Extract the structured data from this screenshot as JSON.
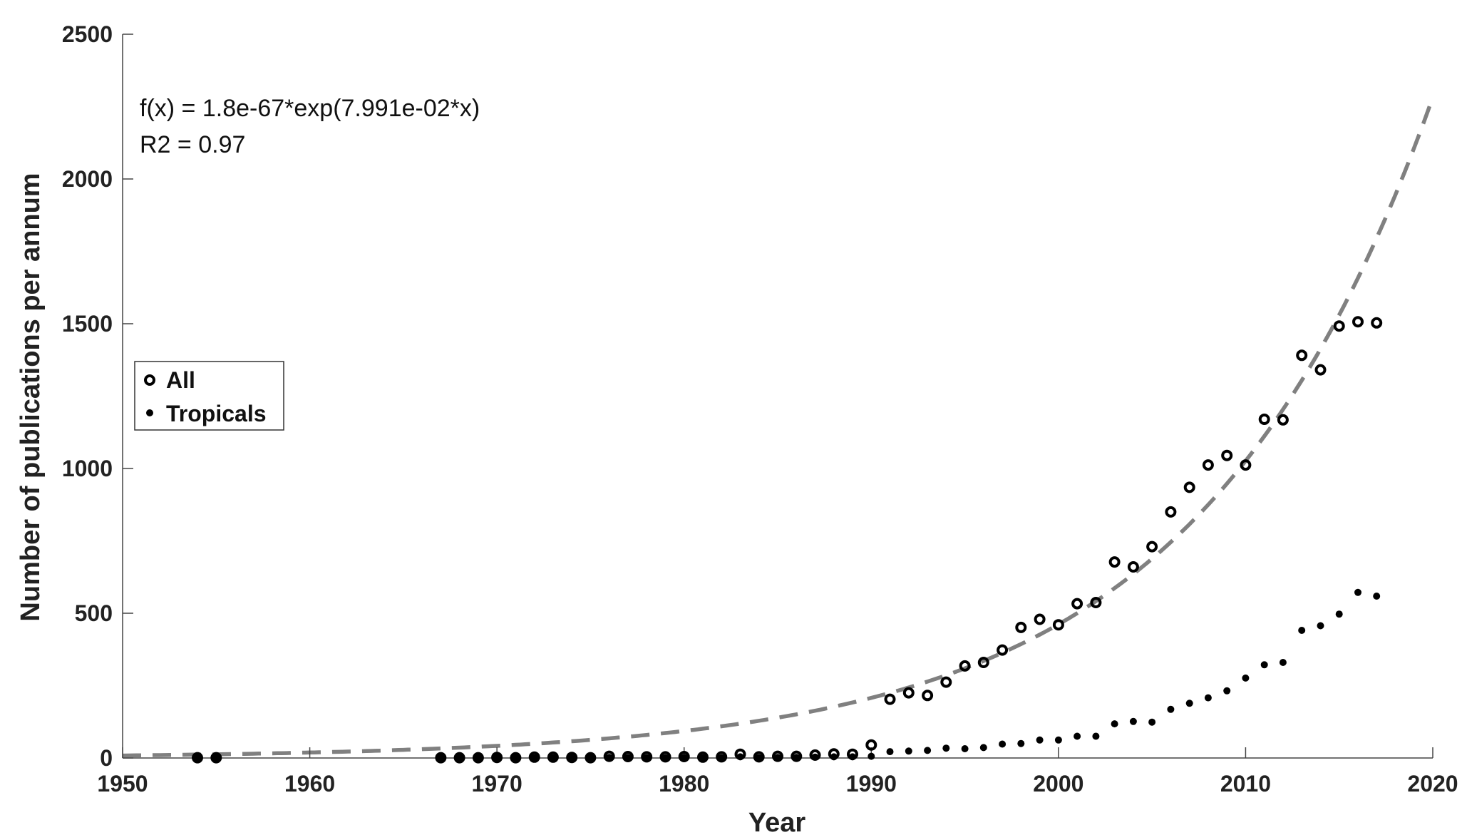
{
  "chart_data": {
    "type": "scatter",
    "xlabel": "Year",
    "ylabel": "Number of publications per annum",
    "xlim": [
      1950,
      2020
    ],
    "ylim": [
      0,
      2500
    ],
    "x_ticks": [
      "1950",
      "1960",
      "1970",
      "1980",
      "1990",
      "2000",
      "2010",
      "2020"
    ],
    "y_ticks": [
      "0",
      "500",
      "1000",
      "1500",
      "2000",
      "2500"
    ],
    "grid": false,
    "legend_position": "left",
    "annotations": [
      "f(x) = 1.8e-67*exp(7.991e-02*x)",
      "R2 = 0.97"
    ],
    "fit": {
      "a": 1.8e-67,
      "b": 0.07991,
      "color": "#808080",
      "style": "dashed"
    },
    "series": [
      {
        "name": "All",
        "marker": "open-circle",
        "color": "#000000",
        "points": [
          [
            1954,
            1
          ],
          [
            1955,
            1
          ],
          [
            1967,
            1
          ],
          [
            1968,
            1
          ],
          [
            1969,
            1
          ],
          [
            1970,
            2
          ],
          [
            1971,
            1
          ],
          [
            1972,
            3
          ],
          [
            1973,
            3
          ],
          [
            1974,
            2
          ],
          [
            1975,
            1
          ],
          [
            1976,
            6
          ],
          [
            1977,
            5
          ],
          [
            1978,
            4
          ],
          [
            1979,
            4
          ],
          [
            1980,
            5
          ],
          [
            1981,
            3
          ],
          [
            1982,
            4
          ],
          [
            1983,
            13
          ],
          [
            1984,
            4
          ],
          [
            1985,
            6
          ],
          [
            1986,
            6
          ],
          [
            1987,
            10
          ],
          [
            1988,
            14
          ],
          [
            1989,
            13
          ],
          [
            1990,
            45
          ],
          [
            1991,
            203
          ],
          [
            1992,
            225
          ],
          [
            1993,
            216
          ],
          [
            1994,
            262
          ],
          [
            1995,
            318
          ],
          [
            1996,
            330
          ],
          [
            1997,
            373
          ],
          [
            1998,
            451
          ],
          [
            1999,
            479
          ],
          [
            2000,
            460
          ],
          [
            2001,
            533
          ],
          [
            2002,
            537
          ],
          [
            2003,
            677
          ],
          [
            2004,
            660
          ],
          [
            2005,
            730
          ],
          [
            2006,
            850
          ],
          [
            2007,
            935
          ],
          [
            2008,
            1012
          ],
          [
            2009,
            1045
          ],
          [
            2010,
            1012
          ],
          [
            2011,
            1170
          ],
          [
            2012,
            1168
          ],
          [
            2013,
            1391
          ],
          [
            2014,
            1341
          ],
          [
            2015,
            1492
          ],
          [
            2016,
            1507
          ],
          [
            2017,
            1503
          ]
        ]
      },
      {
        "name": "Tropicals",
        "marker": "dot",
        "color": "#000000",
        "points": [
          [
            1954,
            0
          ],
          [
            1955,
            0
          ],
          [
            1967,
            0
          ],
          [
            1968,
            0
          ],
          [
            1969,
            0
          ],
          [
            1970,
            1
          ],
          [
            1971,
            0
          ],
          [
            1972,
            1
          ],
          [
            1973,
            1
          ],
          [
            1974,
            1
          ],
          [
            1975,
            0
          ],
          [
            1976,
            2
          ],
          [
            1977,
            2
          ],
          [
            1978,
            1
          ],
          [
            1979,
            1
          ],
          [
            1980,
            2
          ],
          [
            1981,
            1
          ],
          [
            1982,
            1
          ],
          [
            1983,
            4
          ],
          [
            1984,
            1
          ],
          [
            1985,
            2
          ],
          [
            1986,
            2
          ],
          [
            1987,
            3
          ],
          [
            1988,
            4
          ],
          [
            1989,
            4
          ],
          [
            1990,
            6
          ],
          [
            1991,
            22
          ],
          [
            1992,
            24
          ],
          [
            1993,
            26
          ],
          [
            1994,
            34
          ],
          [
            1995,
            32
          ],
          [
            1996,
            36
          ],
          [
            1997,
            48
          ],
          [
            1998,
            50
          ],
          [
            1999,
            62
          ],
          [
            2000,
            62
          ],
          [
            2001,
            75
          ],
          [
            2002,
            75
          ],
          [
            2003,
            118
          ],
          [
            2004,
            126
          ],
          [
            2005,
            124
          ],
          [
            2006,
            168
          ],
          [
            2007,
            189
          ],
          [
            2008,
            208
          ],
          [
            2009,
            232
          ],
          [
            2010,
            276
          ],
          [
            2011,
            322
          ],
          [
            2012,
            330
          ],
          [
            2013,
            441
          ],
          [
            2014,
            457
          ],
          [
            2015,
            497
          ],
          [
            2016,
            572
          ],
          [
            2017,
            559
          ]
        ]
      }
    ]
  }
}
